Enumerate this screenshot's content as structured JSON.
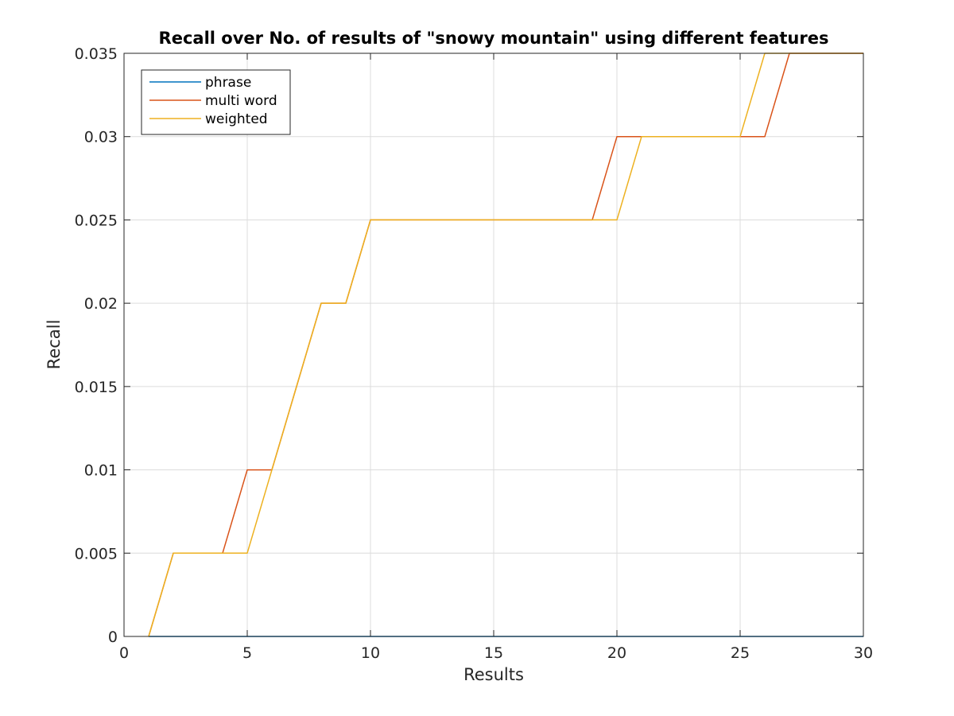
{
  "chart_data": {
    "type": "line",
    "title": "Recall over No. of results of \"snowy mountain\" using different features",
    "xlabel": "Results",
    "ylabel": "Recall",
    "xlim": [
      0,
      30
    ],
    "ylim": [
      0,
      0.035
    ],
    "xticks": [
      0,
      5,
      10,
      15,
      20,
      25,
      30
    ],
    "yticks": [
      0,
      0.005,
      0.01,
      0.015,
      0.02,
      0.025,
      0.03,
      0.035
    ],
    "xtick_labels": [
      "0",
      "5",
      "10",
      "15",
      "20",
      "25",
      "30"
    ],
    "ytick_labels": [
      "0",
      "0.005",
      "0.01",
      "0.015",
      "0.02",
      "0.025",
      "0.03",
      "0.035"
    ],
    "grid": true,
    "legend_position": "top-left",
    "x": [
      1,
      2,
      3,
      4,
      5,
      6,
      7,
      8,
      9,
      10,
      11,
      12,
      13,
      14,
      15,
      16,
      17,
      18,
      19,
      20,
      21,
      22,
      23,
      24,
      25,
      26,
      27,
      28,
      29,
      30
    ],
    "series": [
      {
        "name": "phrase",
        "color": "#0072bd",
        "values": [
          0,
          0,
          0,
          0,
          0,
          0,
          0,
          0,
          0,
          0,
          0,
          0,
          0,
          0,
          0,
          0,
          0,
          0,
          0,
          0,
          0,
          0,
          0,
          0,
          0,
          0,
          0,
          0,
          0,
          0
        ]
      },
      {
        "name": "multi word",
        "color": "#d95319",
        "values": [
          0,
          0.005,
          0.005,
          0.005,
          0.01,
          0.01,
          0.015,
          0.02,
          0.02,
          0.025,
          0.025,
          0.025,
          0.025,
          0.025,
          0.025,
          0.025,
          0.025,
          0.025,
          0.025,
          0.03,
          0.03,
          0.03,
          0.03,
          0.03,
          0.03,
          0.03,
          0.035,
          0.035,
          0.035,
          0.035
        ]
      },
      {
        "name": "weighted",
        "color": "#edb120",
        "values": [
          0,
          0.005,
          0.005,
          0.005,
          0.005,
          0.01,
          0.015,
          0.02,
          0.02,
          0.025,
          0.025,
          0.025,
          0.025,
          0.025,
          0.025,
          0.025,
          0.025,
          0.025,
          0.025,
          0.025,
          0.03,
          0.03,
          0.03,
          0.03,
          0.03,
          0.035,
          0.035,
          0.035,
          0.035,
          0.035
        ]
      }
    ]
  }
}
